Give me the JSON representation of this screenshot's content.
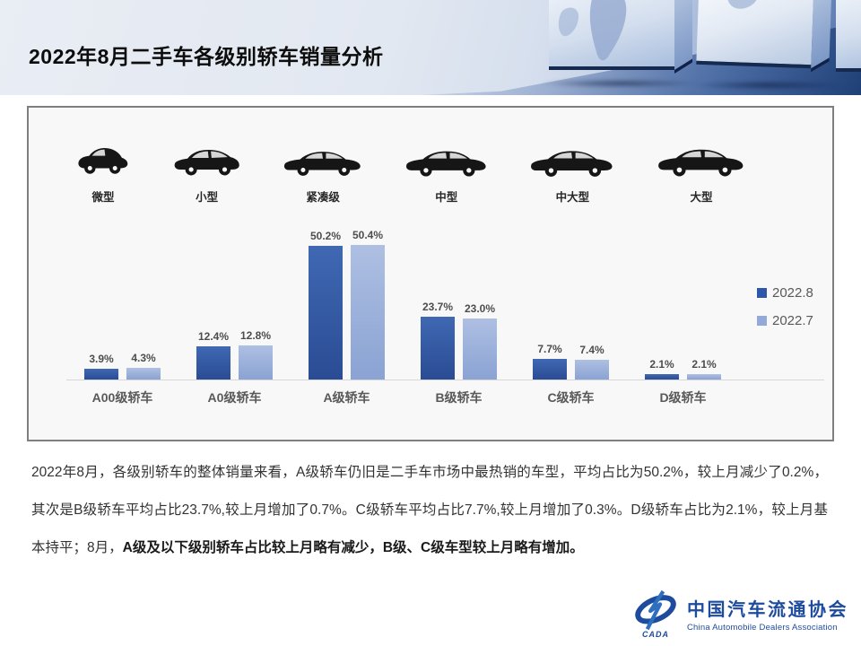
{
  "header": {
    "title": "2022年8月二手车各级别轿车销量分析"
  },
  "vehicle_types": [
    {
      "label": "微型"
    },
    {
      "label": "小型"
    },
    {
      "label": "紧凑级"
    },
    {
      "label": "中型"
    },
    {
      "label": "中大型"
    },
    {
      "label": "大型"
    }
  ],
  "chart_data": {
    "type": "bar",
    "categories": [
      "A00级轿车",
      "A0级轿车",
      "A级轿车",
      "B级轿车",
      "C级轿车",
      "D级轿车"
    ],
    "series": [
      {
        "name": "2022.8",
        "color": "#2e58a7",
        "values": [
          3.9,
          12.4,
          50.2,
          23.7,
          7.7,
          2.1
        ]
      },
      {
        "name": "2022.7",
        "color": "#93a9d8",
        "values": [
          4.3,
          12.8,
          50.4,
          23.0,
          7.4,
          2.1
        ]
      }
    ],
    "value_suffix": "%",
    "ylim": [
      0,
      55
    ],
    "grid": false,
    "legend_position": "right"
  },
  "commentary": {
    "normal": "2022年8月，各级别轿车的整体销量来看，A级轿车仍旧是二手车市场中最热销的车型，平均占比为50.2%，较上月减少了0.2%，其次是B级轿车平均占比23.7%,较上月增加了0.7%。C级轿车平均占比7.7%,较上月增加了0.3%。D级轿车占比为2.1%，较上月基本持平；8月，",
    "bold": "A级及以下级别轿车占比较上月略有减少，B级、C级车型较上月略有增加。"
  },
  "logo": {
    "acronym": "CADA",
    "name_cn": "中国汽车流通协会",
    "name_en": "China Automobile Dealers Association",
    "brand_color": "#1d4b9e"
  }
}
